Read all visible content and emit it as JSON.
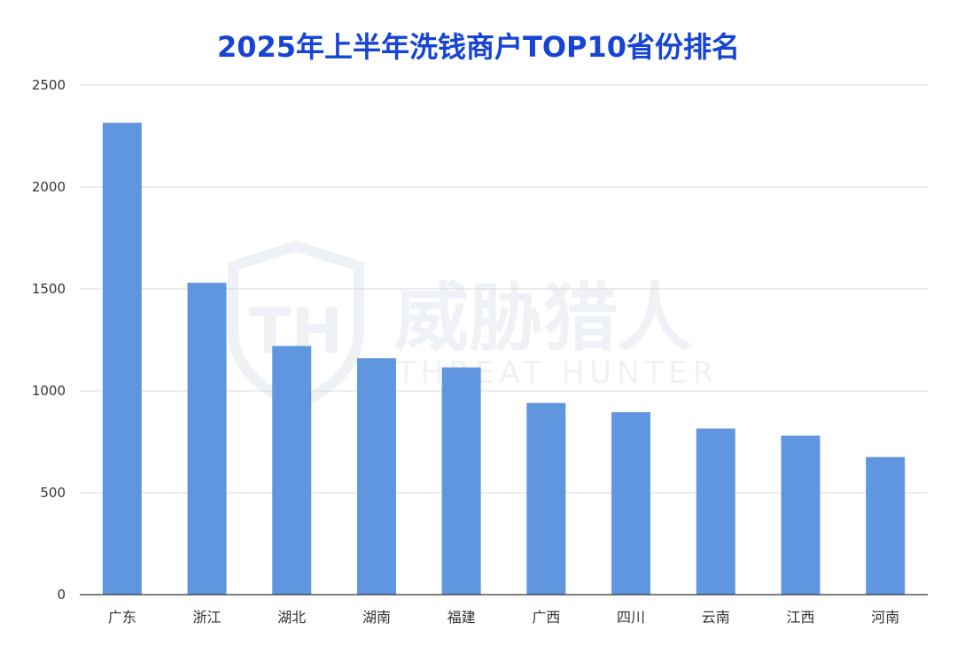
{
  "chart_data": {
    "type": "bar",
    "title": "2025年上半年洗钱商户TOP10省份排名",
    "categories": [
      "广东",
      "浙江",
      "湖北",
      "湖南",
      "福建",
      "广西",
      "四川",
      "云南",
      "江西",
      "河南"
    ],
    "values": [
      2315,
      1530,
      1220,
      1160,
      1115,
      940,
      895,
      815,
      780,
      675
    ],
    "ylim": [
      0,
      2500
    ],
    "yticks": [
      0,
      500,
      1000,
      1500,
      2000,
      2500
    ],
    "grid": true,
    "bar_color": "#6096e0",
    "title_color": "#1744d6"
  },
  "watermark": {
    "logo_mark": "TH",
    "text_cn": "威胁猎人",
    "text_en": "THREAT HUNTER"
  }
}
